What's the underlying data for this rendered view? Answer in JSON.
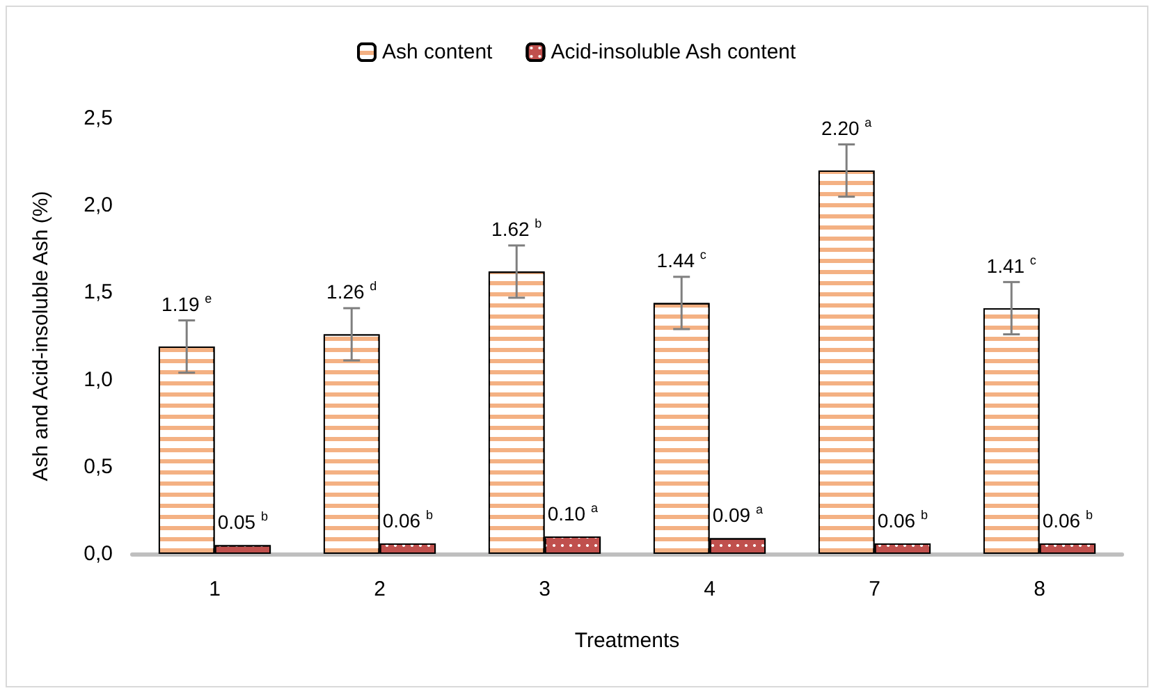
{
  "chart_data": {
    "type": "bar",
    "xlabel": "Treatments",
    "ylabel": "Ash and Acid-insoluble Ash (%)",
    "categories": [
      "1",
      "2",
      "3",
      "4",
      "7",
      "8"
    ],
    "series": [
      {
        "name": "Ash content",
        "color": "#f4b183",
        "values": [
          1.19,
          1.26,
          1.62,
          1.44,
          2.2,
          1.41
        ],
        "errors": [
          0.15,
          0.15,
          0.15,
          0.15,
          0.15,
          0.15
        ],
        "value_labels": [
          "1.19 $^{e}$",
          "1.26 $^{d}$",
          "1.62 $^{b}$",
          "1.44 $^{c}$",
          "2.20 $^{a}$",
          "1.41 $^{c}$"
        ]
      },
      {
        "name": "Acid-insoluble Ash content",
        "color": "#c0504d",
        "values": [
          0.05,
          0.06,
          0.1,
          0.09,
          0.06,
          0.06
        ],
        "value_labels": [
          "0.05 $^{b}$",
          "0.06 $^{b}$",
          "0.10 $^{a}$",
          "0.09 $^{a}$",
          "0.06 $^{b}$",
          "0.06 $^{b}$"
        ]
      }
    ],
    "ylim": [
      0,
      2.5
    ],
    "yticks": [
      {
        "value": 0,
        "label": "0,0"
      },
      {
        "value": 0.5,
        "label": "0,5"
      },
      {
        "value": 1,
        "label": "1,0"
      },
      {
        "value": 1.5,
        "label": "1,5"
      },
      {
        "value": 2,
        "label": "2,0"
      },
      {
        "value": 2.5,
        "label": "2,5"
      }
    ],
    "grid": false,
    "legend": "top"
  }
}
